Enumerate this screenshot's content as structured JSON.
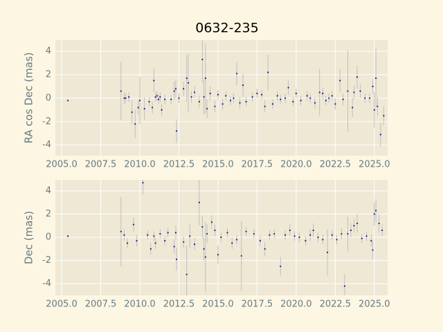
{
  "chart_data": [
    {
      "type": "scatter",
      "title": "0632-235",
      "ylabel": "RA cos Dec (mas)",
      "color": "#1c1c80",
      "error_color": "#b5b5b5",
      "grid": true,
      "xlim": [
        2004.6,
        2025.85
      ],
      "ylim": [
        -4.9,
        4.95
      ],
      "xticks": [
        {
          "value": 2005,
          "label": "2005.0"
        },
        {
          "value": 2007.5,
          "label": "2007.5"
        },
        {
          "value": 2010,
          "label": "2010.0"
        },
        {
          "value": 2012.5,
          "label": "2012.5"
        },
        {
          "value": 2015,
          "label": "2015.0"
        },
        {
          "value": 2017.5,
          "label": "2017.5"
        },
        {
          "value": 2020,
          "label": "2020.0"
        },
        {
          "value": 2022.5,
          "label": "2022.5"
        },
        {
          "value": 2025,
          "label": "2025.0"
        }
      ],
      "yticks": [
        -4,
        -2,
        0,
        2,
        4
      ],
      "x": [
        2005.4,
        2008.8,
        2009.0,
        2009.1,
        2009.3,
        2009.5,
        2009.7,
        2009.9,
        2010.0,
        2010.3,
        2010.6,
        2010.8,
        2010.9,
        2011.0,
        2011.1,
        2011.2,
        2011.3,
        2011.4,
        2011.6,
        2012.0,
        2012.2,
        2012.3,
        2012.35,
        2012.5,
        2012.8,
        2013.0,
        2013.1,
        2013.3,
        2013.5,
        2013.8,
        2014.0,
        2014.1,
        2014.2,
        2014.3,
        2014.5,
        2014.8,
        2015.0,
        2015.3,
        2015.5,
        2015.8,
        2016.0,
        2016.2,
        2016.4,
        2016.6,
        2016.8,
        2017.2,
        2017.5,
        2017.8,
        2018.0,
        2018.2,
        2018.5,
        2018.8,
        2019.0,
        2019.3,
        2019.5,
        2019.8,
        2020.0,
        2020.3,
        2020.7,
        2020.9,
        2021.2,
        2021.5,
        2021.7,
        2021.9,
        2022.1,
        2022.3,
        2022.5,
        2022.8,
        2023.0,
        2023.3,
        2023.6,
        2023.7,
        2023.9,
        2024.1,
        2024.4,
        2024.7,
        2024.9,
        2025.0,
        2025.1,
        2025.2,
        2025.4,
        2025.6
      ],
      "values": [
        -0.2,
        0.6,
        0.0,
        0.0,
        0.1,
        -1.2,
        -2.2,
        -0.8,
        -0.2,
        -0.9,
        -0.3,
        -0.8,
        1.5,
        0.1,
        0.2,
        -0.1,
        0.1,
        -1.0,
        -0.1,
        -0.1,
        0.6,
        0.8,
        -2.8,
        0.0,
        0.8,
        1.7,
        1.3,
        0.1,
        0.5,
        -0.3,
        3.3,
        0.1,
        1.7,
        -0.9,
        0.4,
        -0.7,
        0.3,
        -0.5,
        0.2,
        -0.2,
        0.0,
        2.1,
        -0.4,
        1.1,
        -0.3,
        0.1,
        0.4,
        0.3,
        -0.7,
        2.2,
        -0.5,
        0.2,
        -0.1,
        0.0,
        0.9,
        -0.3,
        0.4,
        -0.2,
        0.2,
        0.0,
        -0.4,
        0.5,
        0.4,
        -0.2,
        0.0,
        0.2,
        -0.5,
        1.5,
        -0.1,
        0.6,
        -0.8,
        0.5,
        1.8,
        0.6,
        0.0,
        0.0,
        1.0,
        -1.0,
        1.7,
        -0.7,
        -3.1,
        -1.5
      ],
      "errors": [
        0.1,
        2.5,
        0.5,
        0.4,
        0.4,
        1.0,
        1.2,
        0.6,
        2.0,
        1.0,
        0.4,
        0.5,
        1.0,
        0.4,
        0.4,
        0.4,
        0.4,
        0.5,
        0.4,
        0.4,
        0.8,
        0.8,
        1.0,
        0.4,
        0.6,
        2.0,
        2.5,
        0.5,
        0.5,
        0.5,
        2.0,
        1.5,
        3.0,
        0.8,
        0.6,
        0.5,
        0.4,
        0.5,
        0.4,
        0.4,
        0.4,
        1.0,
        0.5,
        1.0,
        0.4,
        0.4,
        0.4,
        0.4,
        0.5,
        1.5,
        0.4,
        0.4,
        0.4,
        0.4,
        0.6,
        0.4,
        0.4,
        0.4,
        0.4,
        0.4,
        0.5,
        2.0,
        0.5,
        0.4,
        0.4,
        0.4,
        0.5,
        1.0,
        0.5,
        3.5,
        0.8,
        0.6,
        1.0,
        0.6,
        0.4,
        0.4,
        0.6,
        1.5,
        2.5,
        0.8,
        1.0,
        0.8
      ]
    },
    {
      "type": "scatter",
      "ylabel": "Dec (mas)",
      "color": "#1c1c80",
      "error_color": "#b5b5b5",
      "grid": true,
      "xlim": [
        2004.6,
        2025.85
      ],
      "ylim": [
        -5.0,
        4.95
      ],
      "xticks": [
        {
          "value": 2005,
          "label": "2005.0"
        },
        {
          "value": 2007.5,
          "label": "2007.5"
        },
        {
          "value": 2010,
          "label": "2010.0"
        },
        {
          "value": 2012.5,
          "label": "2012.5"
        },
        {
          "value": 2015,
          "label": "2015.0"
        },
        {
          "value": 2017.5,
          "label": "2017.5"
        },
        {
          "value": 2020,
          "label": "2020.0"
        },
        {
          "value": 2022.5,
          "label": "2022.5"
        },
        {
          "value": 2025,
          "label": "2025.0"
        }
      ],
      "yticks": [
        -4,
        -2,
        0,
        2,
        4
      ],
      "x": [
        2005.4,
        2008.8,
        2009.0,
        2009.2,
        2009.6,
        2009.8,
        2010.2,
        2010.5,
        2010.7,
        2010.9,
        2011.0,
        2011.3,
        2011.6,
        2011.8,
        2012.2,
        2012.3,
        2012.35,
        2012.8,
        2013.0,
        2013.2,
        2013.5,
        2013.8,
        2014.0,
        2014.1,
        2014.2,
        2014.3,
        2014.6,
        2014.8,
        2015.0,
        2015.2,
        2015.6,
        2015.9,
        2016.2,
        2016.5,
        2016.8,
        2017.3,
        2017.7,
        2018.0,
        2018.3,
        2018.6,
        2019.0,
        2019.3,
        2019.6,
        2019.9,
        2020.2,
        2020.6,
        2020.9,
        2021.1,
        2021.4,
        2021.7,
        2022.0,
        2022.3,
        2022.6,
        2022.9,
        2023.1,
        2023.3,
        2023.5,
        2023.7,
        2023.9,
        2024.2,
        2024.5,
        2024.8,
        2024.9,
        2025.0,
        2025.1,
        2025.3,
        2025.5
      ],
      "values": [
        0.1,
        0.5,
        0.2,
        -0.5,
        1.1,
        -0.3,
        4.7,
        0.2,
        -1.0,
        0.1,
        -0.5,
        0.3,
        -0.3,
        0.4,
        -0.8,
        0.4,
        -1.9,
        -0.4,
        -3.2,
        0.1,
        -0.6,
        3.0,
        0.9,
        -1.0,
        -1.7,
        0.3,
        1.3,
        0.6,
        -1.5,
        0.0,
        0.4,
        -0.5,
        -0.2,
        -1.6,
        0.5,
        0.3,
        -0.3,
        -1.0,
        0.2,
        0.3,
        -2.5,
        0.2,
        0.6,
        0.1,
        0.0,
        -0.3,
        0.2,
        0.6,
        0.0,
        -0.2,
        -1.3,
        0.2,
        -0.2,
        0.3,
        -4.2,
        0.3,
        0.6,
        1.0,
        1.2,
        -0.1,
        0.1,
        -0.3,
        -1.1,
        2.0,
        2.3,
        1.2,
        0.6
      ],
      "errors": [
        0.1,
        3.0,
        0.5,
        0.4,
        0.6,
        0.5,
        1.0,
        0.4,
        0.5,
        0.4,
        0.5,
        0.4,
        0.4,
        0.4,
        0.6,
        0.6,
        1.0,
        0.5,
        2.5,
        1.0,
        0.5,
        2.0,
        1.0,
        1.0,
        3.0,
        0.8,
        0.6,
        0.5,
        0.8,
        0.4,
        0.4,
        0.5,
        0.4,
        3.0,
        0.4,
        0.4,
        0.4,
        0.6,
        0.4,
        0.4,
        0.8,
        0.4,
        0.5,
        0.4,
        0.4,
        0.4,
        0.5,
        0.6,
        0.4,
        0.4,
        2.0,
        0.4,
        0.4,
        0.5,
        1.0,
        1.5,
        0.6,
        0.6,
        0.8,
        0.4,
        0.4,
        0.5,
        0.8,
        1.0,
        1.0,
        0.8,
        0.5
      ]
    }
  ]
}
